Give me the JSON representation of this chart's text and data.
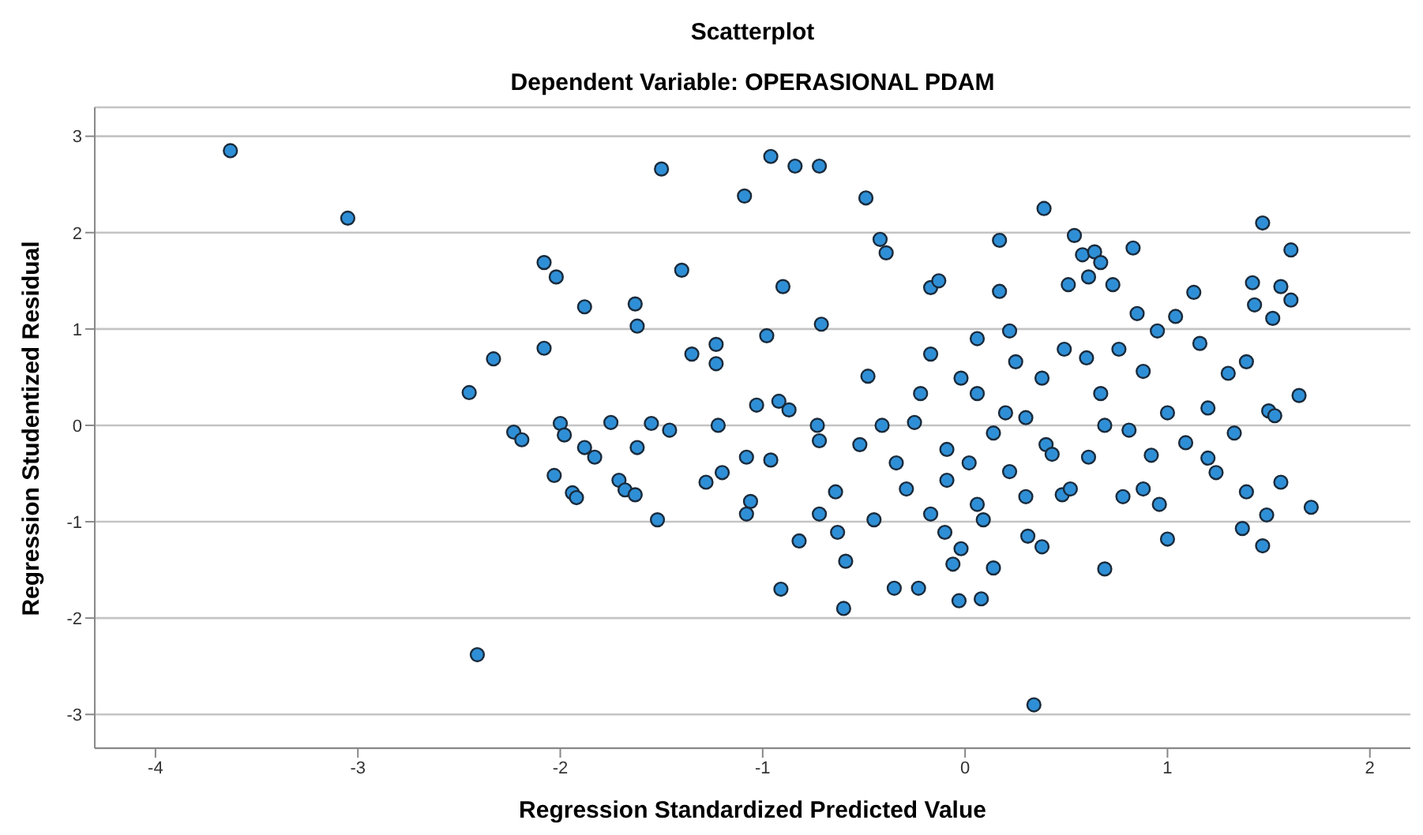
{
  "chart_data": {
    "type": "scatter",
    "title": "Scatterplot",
    "subtitle": "Dependent Variable: OPERASIONAL PDAM",
    "xlabel": "Regression Standardized Predicted Value",
    "ylabel": "Regression Studentized Residual",
    "xlim": [
      -4.3,
      2.2
    ],
    "xticks": [
      -4,
      -3,
      -2,
      -1,
      0,
      1,
      2
    ],
    "ylim": [
      -3.35,
      3.3
    ],
    "yticks": [
      -3,
      -2,
      -1,
      0,
      1,
      2,
      3
    ],
    "grid": "y",
    "marker": "circle",
    "series": [
      {
        "color": "#2f8fd6",
        "x": [
          -3.63,
          -3.05,
          -2.45,
          -2.33,
          -2.23,
          -2.19,
          -2.08,
          -2.02,
          -2.08,
          -2.0,
          -1.98,
          -2.03,
          -1.94,
          -1.92,
          -1.88,
          -1.88,
          -1.83,
          -1.75,
          -1.71,
          -1.68,
          -1.63,
          -1.62,
          -1.62,
          -1.63,
          -2.41,
          -1.55,
          -1.52,
          -1.5,
          -1.46,
          -1.4,
          -1.35,
          -1.28,
          -1.23,
          -1.23,
          -1.22,
          -1.2,
          -1.09,
          -1.08,
          -1.08,
          -1.06,
          -1.03,
          -0.98,
          -0.96,
          -0.96,
          -0.92,
          -0.9,
          -0.91,
          -0.87,
          -0.84,
          -0.82,
          -0.73,
          -0.72,
          -0.71,
          -0.72,
          -0.63,
          -0.64,
          -0.59,
          -0.6,
          -0.49,
          -0.48,
          -0.42,
          -0.39,
          -0.35,
          -0.34,
          -0.23,
          -0.22,
          -0.25,
          -0.17,
          -0.13,
          -0.17,
          -0.1,
          -0.06,
          -0.03,
          -0.02,
          0.02,
          0.06,
          0.08,
          0.09,
          0.14,
          0.17,
          0.17,
          0.2,
          0.22,
          0.25,
          0.31,
          0.38,
          0.39,
          0.4,
          0.43,
          0.48,
          0.49,
          0.51,
          0.52,
          0.54,
          0.58,
          0.61,
          0.6,
          0.64,
          0.67,
          0.67,
          0.69,
          0.73,
          0.76,
          0.78,
          0.83,
          0.34,
          0.85,
          0.88,
          0.92,
          0.96,
          1.0,
          1.0,
          1.04,
          1.09,
          1.13,
          1.16,
          1.2,
          1.24,
          1.3,
          1.33,
          1.37,
          1.39,
          1.42,
          1.43,
          1.47,
          1.47,
          1.61,
          1.56,
          1.61,
          1.52,
          1.65,
          1.56,
          1.49,
          1.71,
          1.39,
          1.5,
          1.53,
          0.95,
          1.2,
          0.81,
          0.3,
          0.14,
          -0.09,
          -0.41,
          -0.52,
          -0.72,
          0.61,
          0.69,
          0.88,
          0.3,
          0.06,
          -0.29,
          -0.45,
          -0.09,
          0.38,
          0.06,
          0.22,
          -0.17,
          -0.02
        ],
        "values": [
          2.85,
          2.15,
          0.34,
          0.69,
          -0.07,
          -0.15,
          1.69,
          1.54,
          0.8,
          0.02,
          -0.1,
          -0.52,
          -0.7,
          -0.75,
          1.23,
          -0.23,
          -0.33,
          0.03,
          -0.57,
          -0.67,
          1.26,
          1.03,
          -0.23,
          -0.72,
          -2.38,
          0.02,
          -0.98,
          2.66,
          -0.05,
          1.61,
          0.74,
          -0.59,
          0.84,
          0.64,
          0.0,
          -0.49,
          2.38,
          -0.33,
          -0.92,
          -0.79,
          0.21,
          0.93,
          2.79,
          -0.36,
          0.25,
          1.44,
          -1.7,
          0.16,
          2.69,
          -1.2,
          0.0,
          2.69,
          1.05,
          -0.92,
          -1.11,
          -0.69,
          -1.41,
          -1.9,
          2.36,
          0.51,
          1.93,
          1.79,
          -1.69,
          -0.39,
          -1.69,
          0.33,
          0.03,
          1.43,
          1.5,
          -0.92,
          -1.11,
          -1.44,
          -1.82,
          -1.28,
          -0.39,
          0.33,
          -1.8,
          -0.98,
          -1.48,
          1.92,
          1.39,
          0.13,
          -0.48,
          0.66,
          -1.15,
          -1.26,
          2.25,
          -0.2,
          -0.3,
          -0.72,
          0.79,
          1.46,
          -0.66,
          1.97,
          1.77,
          1.54,
          0.7,
          1.8,
          1.69,
          0.33,
          -1.49,
          1.46,
          0.79,
          -0.74,
          1.84,
          -2.9,
          1.16,
          0.56,
          -0.31,
          -0.82,
          0.13,
          -1.18,
          1.13,
          -0.18,
          1.38,
          0.85,
          -0.34,
          -0.49,
          0.54,
          -0.08,
          -1.07,
          -0.69,
          1.48,
          1.25,
          -1.25,
          2.1,
          1.82,
          1.44,
          1.3,
          1.11,
          0.31,
          -0.59,
          -0.93,
          -0.85,
          0.66,
          0.15,
          0.1,
          0.98,
          0.18,
          -0.05,
          0.08,
          -0.08,
          -0.25,
          0.0,
          -0.2,
          -0.16,
          -0.33,
          0.0,
          -0.66,
          -0.74,
          -0.82,
          -0.66,
          -0.98,
          -0.57,
          0.49,
          0.9,
          0.98,
          0.74,
          0.49
        ]
      }
    ]
  }
}
